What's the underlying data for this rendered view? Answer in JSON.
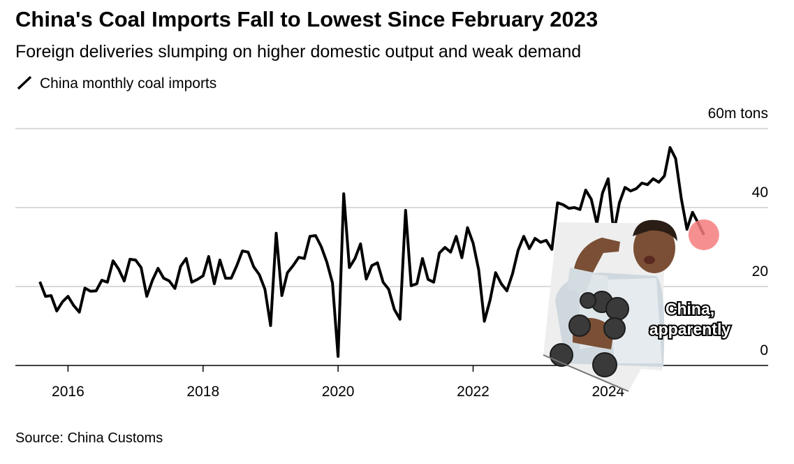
{
  "chart_data": {
    "type": "line",
    "title": "China's Coal Imports Fall to Lowest Since February 2023",
    "subtitle": "Foreign deliveries slumping on higher domestic output and weak demand",
    "source": "Source: China Customs",
    "annotation_lines": [
      "China,",
      "apparently"
    ],
    "x": [
      2015.583,
      2015.667,
      2015.75,
      2015.833,
      2015.917,
      2016,
      2016.083,
      2016.167,
      2016.25,
      2016.333,
      2016.417,
      2016.5,
      2016.583,
      2016.667,
      2016.75,
      2016.833,
      2016.917,
      2017,
      2017.083,
      2017.167,
      2017.25,
      2017.333,
      2017.417,
      2017.5,
      2017.583,
      2017.667,
      2017.75,
      2017.833,
      2017.917,
      2018,
      2018.083,
      2018.167,
      2018.25,
      2018.333,
      2018.417,
      2018.5,
      2018.583,
      2018.667,
      2018.75,
      2018.833,
      2018.917,
      2019,
      2019.083,
      2019.167,
      2019.25,
      2019.333,
      2019.417,
      2019.5,
      2019.583,
      2019.667,
      2019.75,
      2019.833,
      2019.917,
      2020,
      2020.083,
      2020.167,
      2020.25,
      2020.333,
      2020.417,
      2020.5,
      2020.583,
      2020.667,
      2020.75,
      2020.833,
      2020.917,
      2021,
      2021.083,
      2021.167,
      2021.25,
      2021.333,
      2021.417,
      2021.5,
      2021.583,
      2021.667,
      2021.75,
      2021.833,
      2021.917,
      2022,
      2022.083,
      2022.167,
      2022.25,
      2022.333,
      2022.417,
      2022.5,
      2022.583,
      2022.667,
      2022.75,
      2022.833,
      2022.917,
      2023,
      2023.083,
      2023.167,
      2023.25,
      2023.333,
      2023.417,
      2023.5,
      2023.583,
      2023.667,
      2023.75,
      2023.833,
      2023.917,
      2024,
      2024.083,
      2024.167,
      2024.25,
      2024.333,
      2024.417,
      2024.5,
      2024.583,
      2024.667,
      2024.75,
      2024.833,
      2024.917,
      2025,
      2025.083,
      2025.167,
      2025.25,
      2025.333,
      2025.417
    ],
    "series": [
      {
        "name": "China monthly coal imports",
        "color": "#000000",
        "highlight_color": "#f47c7c",
        "values": [
          21.2,
          17.5,
          17.7,
          13.8,
          16.1,
          17.5,
          15.2,
          13.5,
          19.6,
          18.8,
          18.9,
          21.6,
          21.1,
          26.5,
          24.4,
          21.4,
          26.9,
          26.7,
          24.8,
          17.5,
          21.6,
          24.6,
          22.1,
          21.4,
          19.5,
          25.1,
          27.1,
          21.1,
          21.8,
          22.7,
          27.6,
          20.7,
          26.7,
          22.1,
          22.1,
          25.3,
          29.0,
          28.7,
          25.0,
          23.0,
          19.3,
          10.1,
          33.5,
          17.7,
          23.5,
          25.3,
          27.4,
          27.1,
          32.7,
          32.9,
          30.1,
          26.2,
          20.9,
          2.3,
          43.5,
          24.8,
          27.1,
          30.8,
          21.9,
          25.3,
          26.0,
          21.1,
          19.3,
          14.2,
          11.7,
          39.3,
          20.2,
          20.7,
          27.1,
          21.8,
          21.1,
          28.5,
          29.9,
          28.7,
          32.7,
          27.3,
          34.9,
          31.0,
          24.2,
          11.2,
          16.5,
          23.5,
          20.7,
          18.9,
          23.2,
          29.2,
          32.7,
          29.6,
          32.2,
          31.2,
          31.7,
          29.4,
          41.2,
          40.7,
          39.8,
          40.0,
          39.5,
          44.4,
          42.1,
          35.9,
          43.7,
          47.3,
          33.6,
          41.2,
          45.1,
          44.2,
          44.8,
          46.2,
          45.8,
          47.3,
          46.4,
          48.0,
          55.2,
          52.4,
          42.3,
          34.5,
          38.8,
          36.1,
          33.1
        ]
      }
    ],
    "xlim": [
      2015.22,
      2026.37
    ],
    "xticks": [
      2016,
      2018,
      2020,
      2022,
      2024
    ],
    "ylim": [
      0,
      60
    ],
    "yticks": [
      0,
      20,
      40,
      {
        "value": 60,
        "label": "60m tons"
      }
    ],
    "grid": true
  }
}
